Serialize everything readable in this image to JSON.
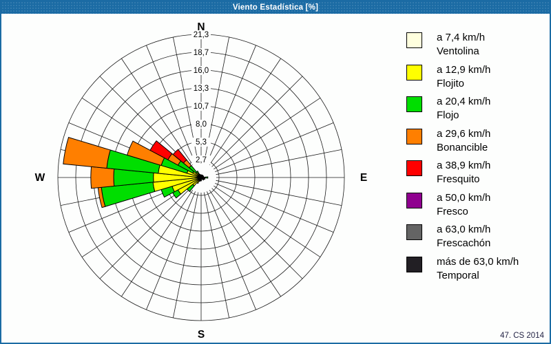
{
  "window": {
    "title": "Viento Estadística [%]",
    "footer": "47. CS 2014"
  },
  "colors": {
    "frame": "#1B6BA4",
    "titlebar": "#1B6BA4",
    "background": "#FDFEFD",
    "grid_line": "#1a1a1a",
    "petal_outline": "#000000"
  },
  "chart_data": {
    "type": "windrose-polar-bar",
    "title": "Viento Estadística [%]",
    "units": "%",
    "rmax": 21.3,
    "ring_values": [
      2.7,
      5.3,
      8.0,
      10.7,
      13.3,
      16.0,
      18.7,
      21.3
    ],
    "ring_labels": [
      "2,7",
      "5,3",
      "8,0",
      "10,7",
      "13,3",
      "16,0",
      "18,7",
      "21,3"
    ],
    "sectors": 32,
    "sector_width_deg": 11.25,
    "grid": true,
    "compass": {
      "n": "N",
      "e": "E",
      "s": "S",
      "w": "W"
    },
    "speed_classes": [
      {
        "id": "ventolina",
        "color": "#FFFFDE",
        "line1": "a 7,4 km/h",
        "line2": "Ventolina"
      },
      {
        "id": "flojito",
        "color": "#FFFF00",
        "line1": "a 12,9 km/h",
        "line2": "Flojito"
      },
      {
        "id": "flojo",
        "color": "#00DE00",
        "line1": "a 20,4 km/h",
        "line2": "Flojo"
      },
      {
        "id": "bonancible",
        "color": "#FF7F00",
        "line1": "a 29,6 km/h",
        "line2": "Bonancible"
      },
      {
        "id": "fresquito",
        "color": "#FF0000",
        "line1": "a 38,9 km/h",
        "line2": "Fresquito"
      },
      {
        "id": "fresco",
        "color": "#8F008F",
        "line1": "a 50,0 km/h",
        "line2": "Fresco"
      },
      {
        "id": "frescachon",
        "color": "#646464",
        "line1": "a 63,0 km/h",
        "line2": "Frescachón"
      },
      {
        "id": "temporal",
        "color": "#221F24",
        "line1": "más de 63,0 km/h",
        "line2": "Temporal"
      }
    ],
    "petals": [
      {
        "dir": 0.0,
        "name": "N",
        "segments": [
          [
            0,
            0,
            0.2
          ],
          [
            1,
            0.2,
            0.4
          ]
        ]
      },
      {
        "dir": 11.25,
        "name": "NbE",
        "segments": [
          [
            0,
            0,
            0.2
          ]
        ]
      },
      {
        "dir": 22.5,
        "name": "NNE",
        "segments": [
          [
            0,
            0,
            0.2
          ],
          [
            1,
            0.2,
            0.4
          ]
        ]
      },
      {
        "dir": 33.75,
        "name": "NEbN",
        "segments": [
          [
            0,
            0,
            0.2
          ]
        ]
      },
      {
        "dir": 45.0,
        "name": "NE",
        "segments": [
          [
            0,
            0,
            0.2
          ],
          [
            1,
            0.2,
            0.4
          ]
        ]
      },
      {
        "dir": 56.25,
        "name": "NEbE",
        "segments": [
          [
            0,
            0,
            0.2
          ]
        ]
      },
      {
        "dir": 67.5,
        "name": "ENE",
        "segments": [
          [
            0,
            0,
            0.2
          ],
          [
            1,
            0.2,
            0.4
          ]
        ]
      },
      {
        "dir": 78.75,
        "name": "EbN",
        "segments": [
          [
            0,
            0,
            0.3
          ]
        ]
      },
      {
        "dir": 90.0,
        "name": "E",
        "segments": [
          [
            0,
            0,
            0.3
          ],
          [
            1,
            0.3,
            0.6
          ],
          [
            2,
            0.6,
            1.0
          ]
        ]
      },
      {
        "dir": 101.25,
        "name": "EbS",
        "segments": [
          [
            0,
            0,
            0.3
          ]
        ]
      },
      {
        "dir": 112.5,
        "name": "ESE",
        "segments": [
          [
            0,
            0,
            0.3
          ],
          [
            1,
            0.3,
            0.6
          ]
        ]
      },
      {
        "dir": 123.75,
        "name": "SEbE",
        "segments": [
          [
            0,
            0,
            0.2
          ]
        ]
      },
      {
        "dir": 135.0,
        "name": "SE",
        "segments": [
          [
            0,
            0,
            0.3
          ],
          [
            1,
            0.3,
            0.5
          ]
        ]
      },
      {
        "dir": 146.25,
        "name": "SEbS",
        "segments": [
          [
            0,
            0,
            0.2
          ]
        ]
      },
      {
        "dir": 157.5,
        "name": "SSE",
        "segments": [
          [
            0,
            0,
            0.3
          ]
        ]
      },
      {
        "dir": 168.75,
        "name": "SbE",
        "segments": [
          [
            0,
            0,
            0.2
          ]
        ]
      },
      {
        "dir": 180.0,
        "name": "S",
        "segments": [
          [
            0,
            0,
            0.3
          ],
          [
            1,
            0.3,
            0.5
          ]
        ]
      },
      {
        "dir": 191.25,
        "name": "SbW",
        "segments": [
          [
            0,
            0,
            0.2
          ]
        ]
      },
      {
        "dir": 202.5,
        "name": "SSW",
        "segments": [
          [
            0,
            0,
            0.3
          ],
          [
            1,
            0.3,
            0.6
          ]
        ]
      },
      {
        "dir": 213.75,
        "name": "SWbS",
        "segments": [
          [
            0,
            0,
            0.4
          ],
          [
            1,
            0.4,
            1.0
          ]
        ]
      },
      {
        "dir": 225.0,
        "name": "SW",
        "segments": [
          [
            0,
            0,
            0.2
          ],
          [
            1,
            0.2,
            1.6
          ],
          [
            2,
            1.6,
            2.7
          ]
        ]
      },
      {
        "dir": 236.25,
        "name": "SWbW",
        "segments": [
          [
            0,
            0,
            0.3
          ],
          [
            1,
            0.3,
            3.9
          ],
          [
            2,
            3.9,
            4.8
          ]
        ]
      },
      {
        "dir": 247.5,
        "name": "WSW",
        "segments": [
          [
            0,
            0,
            0.3
          ],
          [
            1,
            0.3,
            4.5
          ],
          [
            2,
            4.5,
            6.2
          ]
        ]
      },
      {
        "dir": 258.75,
        "name": "WbS",
        "segments": [
          [
            0,
            0,
            0.3
          ],
          [
            1,
            0.3,
            7.2
          ],
          [
            2,
            7.2,
            14.9
          ],
          [
            3,
            14.9,
            15.4
          ]
        ]
      },
      {
        "dir": 270.0,
        "name": "W",
        "segments": [
          [
            0,
            0,
            0.3
          ],
          [
            1,
            0.3,
            7.1
          ],
          [
            2,
            7.1,
            13.0
          ],
          [
            3,
            13.0,
            16.4
          ]
        ]
      },
      {
        "dir": 281.25,
        "name": "WbN",
        "segments": [
          [
            0,
            0,
            0.3
          ],
          [
            1,
            0.3,
            6.4
          ],
          [
            2,
            6.4,
            14.1
          ],
          [
            3,
            14.1,
            20.6
          ]
        ]
      },
      {
        "dir": 292.5,
        "name": "WNW",
        "segments": [
          [
            0,
            0,
            0.2
          ],
          [
            1,
            0.2,
            2.2
          ],
          [
            2,
            2.2,
            6.2
          ],
          [
            3,
            6.2,
            11.5
          ]
        ]
      },
      {
        "dir": 303.75,
        "name": "NWbW",
        "segments": [
          [
            0,
            0,
            0.2
          ],
          [
            1,
            0.2,
            1.4
          ],
          [
            2,
            1.4,
            3.9
          ],
          [
            3,
            3.9,
            5.6
          ],
          [
            4,
            5.6,
            8.6
          ]
        ]
      },
      {
        "dir": 315.0,
        "name": "NW",
        "segments": [
          [
            0,
            0,
            0.2
          ],
          [
            1,
            0.2,
            1.0
          ],
          [
            2,
            1.0,
            2.3
          ],
          [
            3,
            2.3,
            3.4
          ],
          [
            4,
            3.4,
            5.4
          ]
        ]
      },
      {
        "dir": 326.25,
        "name": "NWbN",
        "segments": [
          [
            0,
            0,
            0.2
          ],
          [
            1,
            0.2,
            0.7
          ],
          [
            2,
            0.7,
            1.1
          ]
        ]
      },
      {
        "dir": 337.5,
        "name": "NNW",
        "segments": [
          [
            0,
            0,
            0.2
          ],
          [
            1,
            0.2,
            0.5
          ]
        ]
      },
      {
        "dir": 348.75,
        "name": "NbW",
        "segments": [
          [
            0,
            0,
            0.2
          ]
        ]
      }
    ]
  }
}
